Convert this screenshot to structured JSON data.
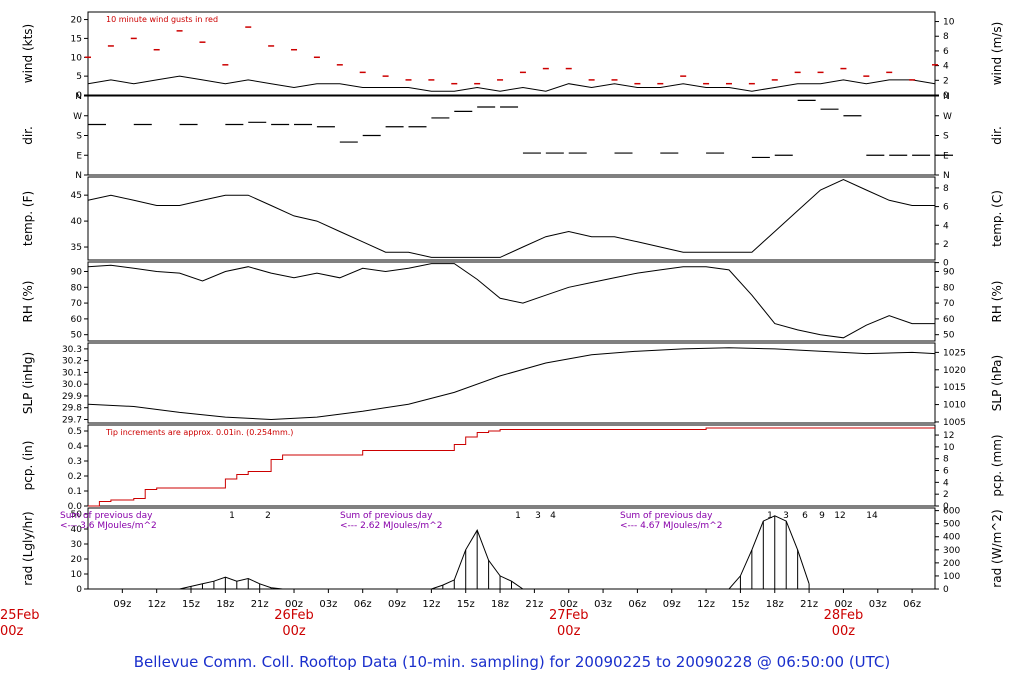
{
  "chart_data": {
    "type": "line",
    "title": "Bellevue Comm. Coll. Rooftop Data (10-min. sampling) for 20090225  to  20090228 @ 06:50:00  (UTC)",
    "x_ticks": [
      "09z",
      "12z",
      "15z",
      "18z",
      "21z",
      "00z",
      "03z",
      "06z",
      "09z",
      "12z",
      "15z",
      "18z",
      "21z",
      "00z",
      "03z",
      "06z",
      "09z",
      "12z",
      "15z",
      "18z",
      "21z",
      "00z",
      "03z",
      "06z"
    ],
    "date_labels": [
      {
        "day": "25Feb",
        "hour": "00z"
      },
      {
        "day": "26Feb",
        "hour": "00z"
      },
      {
        "day": "27Feb",
        "hour": "00z"
      },
      {
        "day": "28Feb",
        "hour": "00z"
      }
    ],
    "panels": [
      {
        "id": "wind",
        "ylabel_left": "wind (kts)",
        "ylabel_right": "wind (m/s)",
        "left_ticks": [
          "0",
          "5",
          "10",
          "15",
          "20"
        ],
        "right_ticks": [
          "0",
          "2",
          "4",
          "6",
          "8",
          "10"
        ],
        "annotation": "10  minute wind gusts in red",
        "series": [
          {
            "name": "sustained",
            "color": "#000000",
            "x": [
              6,
              8,
              10,
              12,
              14,
              16,
              18,
              20,
              22,
              24,
              26,
              28,
              30,
              32,
              34,
              36,
              38,
              40,
              42,
              44,
              46,
              48,
              50,
              52,
              54,
              56,
              58,
              60,
              62,
              64,
              66,
              68,
              70,
              72,
              74,
              76,
              78,
              80
            ],
            "y": [
              3,
              4,
              3,
              4,
              5,
              4,
              3,
              4,
              3,
              2,
              3,
              3,
              2,
              2,
              2,
              1,
              1,
              2,
              1,
              2,
              1,
              3,
              2,
              3,
              2,
              2,
              3,
              2,
              2,
              1,
              2,
              3,
              3,
              4,
              3,
              4,
              4,
              3
            ]
          },
          {
            "name": "gust",
            "color": "#cc0000",
            "x": [
              6,
              8,
              10,
              12,
              14,
              16,
              18,
              20,
              22,
              24,
              26,
              28,
              30,
              32,
              34,
              36,
              38,
              40,
              42,
              44,
              46,
              48,
              50,
              52,
              54,
              56,
              58,
              60,
              62,
              64,
              66,
              68,
              70,
              72,
              74,
              76,
              78,
              80
            ],
            "y": [
              10,
              13,
              15,
              12,
              17,
              14,
              8,
              18,
              13,
              12,
              10,
              8,
              6,
              5,
              4,
              4,
              3,
              3,
              4,
              6,
              7,
              7,
              4,
              4,
              3,
              3,
              5,
              3,
              3,
              3,
              4,
              6,
              6,
              7,
              5,
              6,
              4,
              8
            ]
          }
        ]
      },
      {
        "id": "dir",
        "ylabel_left": "dir.",
        "ylabel_right": "dir.",
        "left_ticks": [
          "N",
          "E",
          "S",
          "W",
          "N"
        ],
        "right_ticks": [
          "N",
          "E",
          "S",
          "W",
          "N"
        ],
        "series": [
          {
            "name": "direction",
            "color": "#000000",
            "x": [
              6,
              10,
              14,
              18,
              20,
              22,
              24,
              26,
              28,
              30,
              32,
              34,
              36,
              38,
              40,
              42,
              44,
              46,
              48,
              52,
              56,
              60,
              64,
              66,
              68,
              70,
              72,
              74,
              76,
              78,
              80
            ],
            "y": [
              230,
              230,
              230,
              230,
              240,
              230,
              230,
              220,
              150,
              180,
              220,
              220,
              260,
              290,
              310,
              310,
              100,
              100,
              100,
              100,
              100,
              100,
              80,
              90,
              340,
              300,
              270,
              90,
              90,
              90,
              90
            ]
          }
        ]
      },
      {
        "id": "temp",
        "ylabel_left": "temp. (F)",
        "ylabel_right": "temp. (C)",
        "left_ticks": [
          "35",
          "40",
          "45"
        ],
        "right_ticks": [
          "0",
          "2",
          "4",
          "6",
          "8"
        ],
        "series": [
          {
            "name": "temperature",
            "color": "#000000",
            "x": [
              6,
              8,
              10,
              12,
              14,
              16,
              18,
              20,
              22,
              24,
              26,
              28,
              30,
              32,
              34,
              36,
              38,
              40,
              42,
              44,
              46,
              48,
              50,
              52,
              54,
              56,
              58,
              60,
              62,
              64,
              66,
              68,
              70,
              72,
              74,
              76,
              78,
              80
            ],
            "y": [
              44,
              45,
              44,
              43,
              43,
              44,
              45,
              45,
              43,
              41,
              40,
              38,
              36,
              34,
              34,
              33,
              33,
              33,
              33,
              35,
              37,
              38,
              37,
              37,
              36,
              35,
              34,
              34,
              34,
              34,
              38,
              42,
              46,
              48,
              46,
              44,
              43,
              43
            ]
          }
        ]
      },
      {
        "id": "rh",
        "ylabel_left": "RH (%)",
        "ylabel_right": "RH (%)",
        "left_ticks": [
          "50",
          "60",
          "70",
          "80",
          "90"
        ],
        "right_ticks": [
          "50",
          "60",
          "70",
          "80",
          "90"
        ],
        "series": [
          {
            "name": "relative humidity",
            "color": "#000000",
            "x": [
              6,
              8,
              10,
              12,
              14,
              16,
              18,
              20,
              22,
              24,
              26,
              28,
              30,
              32,
              34,
              36,
              38,
              40,
              42,
              44,
              46,
              48,
              50,
              52,
              54,
              56,
              58,
              60,
              62,
              64,
              66,
              68,
              70,
              72,
              74,
              76,
              78,
              80
            ],
            "y": [
              93,
              94,
              92,
              90,
              89,
              84,
              90,
              93,
              89,
              86,
              89,
              86,
              92,
              90,
              92,
              95,
              95,
              85,
              73,
              70,
              75,
              80,
              83,
              86,
              89,
              91,
              93,
              93,
              91,
              75,
              57,
              53,
              50,
              48,
              56,
              62,
              57,
              57
            ]
          }
        ]
      },
      {
        "id": "slp",
        "ylabel_left": "SLP (inHg)",
        "ylabel_right": "SLP (hPa)",
        "left_ticks": [
          "29.7",
          "29.8",
          "29.9",
          "30.0",
          "30.1",
          "30.2",
          "30.3"
        ],
        "right_ticks": [
          "1005",
          "1010",
          "1015",
          "1020",
          "1025"
        ],
        "series": [
          {
            "name": "sea level pressure",
            "color": "#000000",
            "x": [
              6,
              10,
              14,
              18,
              22,
              26,
              30,
              34,
              38,
              42,
              46,
              50,
              54,
              58,
              62,
              66,
              70,
              74,
              78,
              80
            ],
            "y": [
              29.83,
              29.81,
              29.76,
              29.72,
              29.7,
              29.72,
              29.77,
              29.83,
              29.93,
              30.07,
              30.18,
              30.25,
              30.28,
              30.3,
              30.31,
              30.3,
              30.28,
              30.26,
              30.27,
              30.26
            ]
          }
        ]
      },
      {
        "id": "pcp",
        "ylabel_left": "pcp. (in)",
        "ylabel_right": "pcp. (mm)",
        "left_ticks": [
          "0.0",
          "0.1",
          "0.2",
          "0.3",
          "0.4",
          "0.5"
        ],
        "right_ticks": [
          "0",
          "2",
          "4",
          "6",
          "8",
          "10",
          "12"
        ],
        "annotation": "Tip increments are approx. 0.01in. (0.254mm.)",
        "series": [
          {
            "name": "cumulative precipitation",
            "color": "#cc0000",
            "x": [
              6,
              7,
              8,
              10,
              11,
              12,
              14,
              17,
              18,
              19,
              20,
              21,
              22,
              23,
              30,
              37,
              38,
              39,
              40,
              41,
              42,
              50,
              60,
              80
            ],
            "y": [
              0.0,
              0.03,
              0.04,
              0.05,
              0.11,
              0.12,
              0.12,
              0.12,
              0.18,
              0.21,
              0.23,
              0.23,
              0.31,
              0.34,
              0.37,
              0.37,
              0.41,
              0.46,
              0.49,
              0.5,
              0.51,
              0.51,
              0.52,
              0.52
            ]
          }
        ]
      },
      {
        "id": "rad",
        "ylabel_left": "rad (Lgly/hr)",
        "ylabel_right": "rad (W/m^2)",
        "left_ticks": [
          "0",
          "10",
          "20",
          "30",
          "40",
          "50"
        ],
        "right_ticks": [
          "0",
          "100",
          "200",
          "300",
          "400",
          "500",
          "600"
        ],
        "hour_markers": [
          "1",
          "2",
          "1",
          "3",
          "4",
          "1",
          "3",
          "6",
          "9",
          "12",
          "14"
        ],
        "notes": [
          {
            "text": "Sum of previous day",
            "value": "<--- 3.6 MJoules/m^2"
          },
          {
            "text": "Sum of previous day",
            "value": "<--- 2.62 MJoules/m^2"
          },
          {
            "text": "Sum of previous day",
            "value": "<--- 4.67 MJoules/m^2"
          }
        ],
        "series": [
          {
            "name": "solar radiation",
            "color": "#000000",
            "x": [
              14,
              15,
              16,
              17,
              18,
              19,
              20,
              21,
              22,
              23,
              36,
              37,
              38,
              39,
              40,
              41,
              42,
              43,
              44,
              62,
              63,
              64,
              65,
              66,
              67,
              68,
              69
            ],
            "y": [
              0,
              20,
              40,
              60,
              90,
              60,
              80,
              40,
              10,
              0,
              0,
              30,
              70,
              300,
              450,
              220,
              100,
              60,
              0,
              0,
              100,
              300,
              520,
              560,
              520,
              300,
              40
            ]
          }
        ]
      }
    ]
  }
}
